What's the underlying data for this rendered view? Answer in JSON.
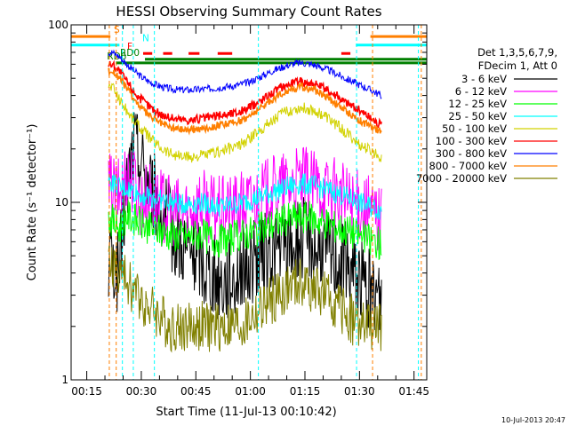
{
  "chart_data": {
    "type": "line",
    "title": "HESSI Observing Summary Count Rates",
    "xlabel": "Start Time (11-Jul-13 00:10:42)",
    "ylabel": "Count Rate (s⁻¹ detector⁻¹)",
    "y_scale": "log",
    "ylim": [
      1,
      100
    ],
    "xlim": [
      "00:10:42",
      "01:48:30"
    ],
    "x_ticks": [
      "00:15",
      "00:30",
      "00:45",
      "01:00",
      "01:15",
      "01:30",
      "01:45"
    ],
    "y_ticks": [
      "1",
      "10",
      "100"
    ],
    "x_tick_minutes": [
      15,
      30,
      45,
      60,
      75,
      90,
      105
    ],
    "legend": {
      "header": [
        "Det 1,3,5,6,7,9,",
        "FDecim 1, Att 0"
      ],
      "position": "right",
      "entries": [
        {
          "label": "3 - 6 keV",
          "color": "#000000"
        },
        {
          "label": "6 - 12 keV",
          "color": "#ff00ff"
        },
        {
          "label": "12 - 25 keV",
          "color": "#00ff00"
        },
        {
          "label": "25 - 50 keV",
          "color": "#00ffff"
        },
        {
          "label": "50 - 100 keV",
          "color": "#d2d200"
        },
        {
          "label": "100 - 300 keV",
          "color": "#ff0000"
        },
        {
          "label": "300 - 800 keV",
          "color": "#0000ff"
        },
        {
          "label": "800 - 7000 keV",
          "color": "#ff7f00"
        },
        {
          "label": "7000 - 20000 keV",
          "color": "#808000"
        }
      ]
    },
    "flags": [
      {
        "label": "S",
        "color": "#ff7f00",
        "segments": [
          [
            10.7,
            21.5
          ],
          [
            93,
            108.5
          ]
        ],
        "level": 86
      },
      {
        "label": "N",
        "color": "#00ffff",
        "segments": [
          [
            10.7,
            24
          ],
          [
            89,
            108.5
          ]
        ],
        "level": 77
      },
      {
        "label": "F",
        "color": "#ff0000",
        "segments": [
          [
            30.5,
            33
          ],
          [
            36,
            38.5
          ],
          [
            43,
            46
          ],
          [
            51,
            55
          ],
          [
            85,
            87.5
          ]
        ],
        "level": 69
      },
      {
        "label": "RD0",
        "color": "#007f00",
        "segments": [
          [
            31,
            108.5
          ]
        ],
        "level": 64
      },
      {
        "label": "RD6",
        "color": "#007f00",
        "segments": [
          [
            23,
            108.5
          ]
        ],
        "level": 61
      }
    ],
    "vertical_lines": [
      {
        "minute": 21.2,
        "color": "#ff7f00"
      },
      {
        "minute": 23.1,
        "color": "#ff7f00"
      },
      {
        "minute": 24.8,
        "color": "#00ffff"
      },
      {
        "minute": 27.8,
        "color": "#00ffff"
      },
      {
        "minute": 33.6,
        "color": "#00ffff"
      },
      {
        "minute": 62.2,
        "color": "#00ffff"
      },
      {
        "minute": 89.2,
        "color": "#00ffff"
      },
      {
        "minute": 93.6,
        "color": "#ff7f00"
      },
      {
        "minute": 106.2,
        "color": "#00ffff"
      },
      {
        "minute": 107.0,
        "color": "#ff7f00"
      }
    ],
    "data_window": {
      "start_minute": 21.0,
      "end_minute": 96.2
    },
    "series": [
      {
        "name": "3 - 6 keV",
        "color": "#000000",
        "x": [
          22,
          24,
          26,
          28,
          30,
          32,
          34,
          36,
          38,
          40,
          42,
          44,
          46,
          48,
          50,
          52,
          54,
          56,
          58,
          60,
          62,
          64,
          66,
          68,
          70,
          72,
          74,
          76,
          78,
          80,
          82,
          84,
          86,
          88,
          90,
          92,
          94,
          96
        ],
        "y": [
          5,
          4,
          12,
          22,
          18,
          14,
          11,
          9,
          7.5,
          6.5,
          6,
          5.5,
          5,
          4.5,
          4,
          3.8,
          4,
          4.2,
          4.5,
          4.8,
          5,
          5.3,
          5.6,
          5.9,
          6.1,
          6.3,
          6.5,
          6.4,
          6.2,
          6,
          5.6,
          5.2,
          4.8,
          4.4,
          4,
          3.5,
          3.2,
          3
        ]
      },
      {
        "name": "6 - 12 keV",
        "color": "#ff00ff",
        "x": [
          22,
          24,
          26,
          28,
          30,
          32,
          34,
          36,
          38,
          40,
          42,
          44,
          46,
          48,
          50,
          52,
          54,
          56,
          58,
          60,
          62,
          64,
          66,
          68,
          70,
          72,
          74,
          76,
          78,
          80,
          82,
          84,
          86,
          88,
          90,
          92,
          94,
          96
        ],
        "y": [
          12,
          11,
          15,
          13,
          10,
          11,
          10,
          9.5,
          9,
          8.8,
          9,
          9.5,
          10,
          9.5,
          9,
          8.8,
          9,
          9.3,
          9.6,
          10,
          10.5,
          11,
          11.5,
          12,
          12.4,
          12.8,
          13,
          12.8,
          12.4,
          12,
          11.5,
          11,
          10.5,
          10,
          9.5,
          9,
          8.5,
          8
        ]
      },
      {
        "name": "12 - 25 keV",
        "color": "#00ff00",
        "x": [
          22,
          24,
          26,
          28,
          30,
          32,
          34,
          36,
          38,
          40,
          42,
          44,
          46,
          48,
          50,
          52,
          54,
          56,
          58,
          60,
          62,
          64,
          66,
          68,
          70,
          72,
          74,
          76,
          78,
          80,
          82,
          84,
          86,
          88,
          90,
          92,
          94,
          96
        ],
        "y": [
          8,
          7,
          8.5,
          8,
          7.5,
          7.2,
          7,
          6.8,
          6.6,
          6.5,
          6.4,
          6.5,
          6.6,
          6.4,
          6.2,
          6.1,
          6.2,
          6.4,
          6.6,
          6.8,
          7,
          7.2,
          7.5,
          7.8,
          8,
          8.2,
          8.3,
          8.2,
          8,
          7.8,
          7.5,
          7.2,
          7,
          6.8,
          6.5,
          6.2,
          6,
          5.8
        ]
      },
      {
        "name": "25 - 50 keV",
        "color": "#00ffff",
        "x": [
          22,
          24,
          26,
          28,
          30,
          32,
          34,
          36,
          38,
          40,
          42,
          44,
          46,
          48,
          50,
          52,
          54,
          56,
          58,
          60,
          62,
          64,
          66,
          68,
          70,
          72,
          74,
          76,
          78,
          80,
          82,
          84,
          86,
          88,
          90,
          92,
          94,
          96
        ],
        "y": [
          13,
          12,
          12,
          11.5,
          11,
          10.8,
          10.5,
          10.2,
          10,
          9.8,
          9.8,
          9.9,
          10,
          9.8,
          9.6,
          9.5,
          9.6,
          9.8,
          10,
          10.3,
          10.6,
          11,
          11.4,
          11.8,
          12.2,
          12.5,
          12.7,
          12.6,
          12.3,
          12,
          11.6,
          11.2,
          10.8,
          10.4,
          10,
          9.6,
          9.3,
          9
        ]
      },
      {
        "name": "50 - 100 keV",
        "color": "#d2d200",
        "x": [
          22,
          24,
          26,
          28,
          30,
          32,
          34,
          36,
          38,
          40,
          42,
          44,
          46,
          48,
          50,
          52,
          54,
          56,
          58,
          60,
          62,
          64,
          66,
          68,
          70,
          72,
          74,
          76,
          78,
          80,
          82,
          84,
          86,
          88,
          90,
          92,
          94,
          96
        ],
        "y": [
          45,
          38,
          33,
          29,
          26,
          23.5,
          21.5,
          20,
          19,
          18.3,
          18,
          18,
          18.2,
          18.5,
          19,
          19.5,
          20,
          20.5,
          21.5,
          23,
          25,
          27,
          29,
          31,
          32.5,
          33.5,
          34,
          33.5,
          32.5,
          31,
          29,
          27,
          25,
          23,
          21,
          20,
          19,
          18
        ]
      },
      {
        "name": "100 - 300 keV",
        "color": "#ff0000",
        "x": [
          22,
          24,
          26,
          28,
          30,
          32,
          34,
          36,
          38,
          40,
          42,
          44,
          46,
          48,
          50,
          52,
          54,
          56,
          58,
          60,
          62,
          64,
          66,
          68,
          70,
          72,
          74,
          76,
          78,
          80,
          82,
          84,
          86,
          88,
          90,
          92,
          94,
          96
        ],
        "y": [
          60,
          55,
          48,
          42,
          38,
          35,
          32.5,
          31,
          30,
          29.5,
          29.2,
          29.2,
          29.5,
          30,
          30.5,
          31,
          31.5,
          32,
          33,
          34.5,
          36.5,
          39,
          41.5,
          44,
          46,
          47.5,
          48,
          47.5,
          46,
          44,
          42,
          39.5,
          37,
          35,
          33,
          31,
          29,
          27
        ]
      },
      {
        "name": "300 - 800 keV",
        "color": "#0000ff",
        "x": [
          22,
          24,
          26,
          28,
          30,
          32,
          34,
          36,
          38,
          40,
          42,
          44,
          46,
          48,
          50,
          52,
          54,
          56,
          58,
          60,
          62,
          64,
          66,
          68,
          70,
          72,
          74,
          76,
          78,
          80,
          82,
          84,
          86,
          88,
          90,
          92,
          94,
          96
        ],
        "y": [
          70,
          66,
          60,
          55,
          51,
          48,
          46,
          44.5,
          43.5,
          43,
          43,
          43,
          43.2,
          43.5,
          44,
          44.5,
          45,
          45.5,
          46.5,
          48,
          50,
          52.5,
          55,
          57,
          59,
          60.5,
          61,
          60.5,
          59,
          57,
          55,
          52.5,
          50,
          48,
          46,
          44,
          42,
          40
        ]
      },
      {
        "name": "800 - 7000 keV",
        "color": "#ff7f00",
        "x": [
          22,
          24,
          26,
          28,
          30,
          32,
          34,
          36,
          38,
          40,
          42,
          44,
          46,
          48,
          50,
          52,
          54,
          56,
          58,
          60,
          62,
          64,
          66,
          68,
          70,
          72,
          74,
          76,
          78,
          80,
          82,
          84,
          86,
          88,
          90,
          92,
          94,
          96
        ],
        "y": [
          55,
          50,
          44,
          38,
          34,
          31,
          29,
          27.5,
          26.5,
          26,
          25.8,
          25.8,
          26,
          26.3,
          26.8,
          27.3,
          27.8,
          28.3,
          29.3,
          31,
          33,
          35.5,
          38,
          40.5,
          42.5,
          44,
          44.5,
          44,
          42.5,
          40.5,
          38,
          35.5,
          33,
          31,
          29,
          27.5,
          26,
          25
        ]
      },
      {
        "name": "7000 - 20000 keV",
        "color": "#808000",
        "x": [
          22,
          24,
          26,
          28,
          30,
          32,
          34,
          36,
          38,
          40,
          42,
          44,
          46,
          48,
          50,
          52,
          54,
          56,
          58,
          60,
          62,
          64,
          66,
          68,
          70,
          72,
          74,
          76,
          78,
          80,
          82,
          84,
          86,
          88,
          90,
          92,
          94,
          96
        ],
        "y": [
          4.5,
          4,
          3.6,
          3.2,
          2.9,
          2.6,
          2.4,
          2.2,
          2,
          2,
          2,
          2,
          2,
          2,
          2,
          2,
          2,
          2,
          2,
          2.2,
          2.4,
          2.6,
          2.8,
          3,
          3.2,
          3.4,
          3.5,
          3.4,
          3.2,
          3,
          2.8,
          2.6,
          2.4,
          2.2,
          2,
          2,
          2,
          2
        ]
      }
    ]
  },
  "footer_timestamp": "10-Jul-2013 20:47"
}
